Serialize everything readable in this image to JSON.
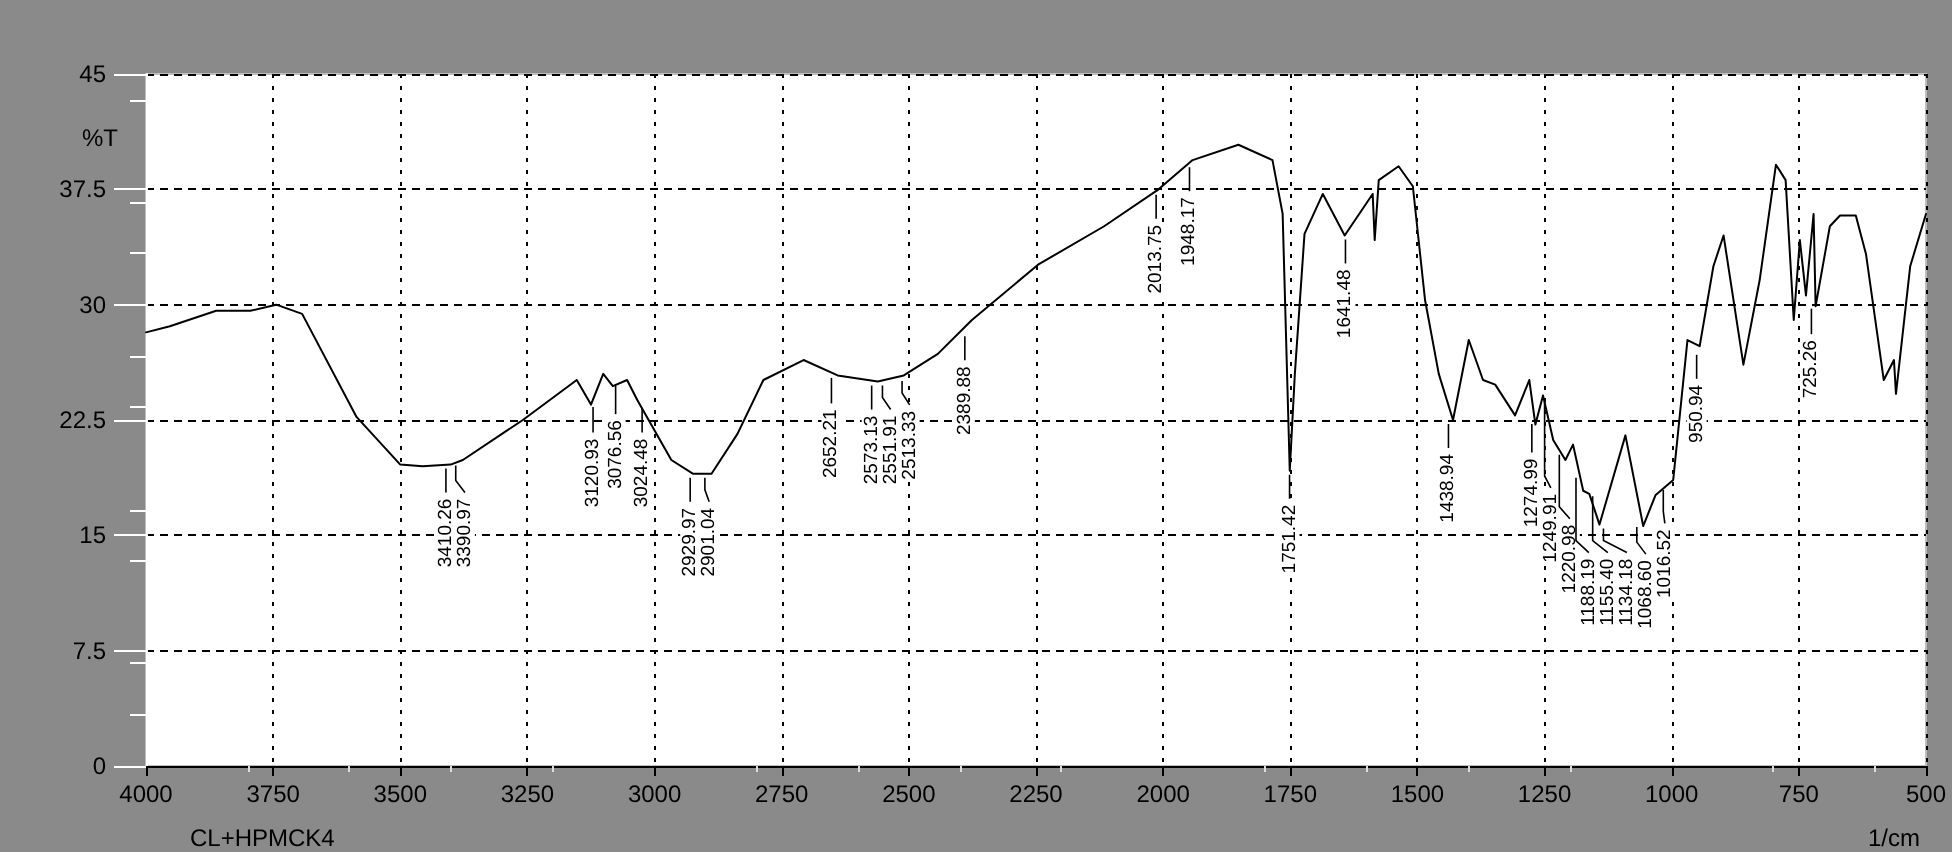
{
  "chart_data": {
    "type": "line",
    "ylabel": "%T",
    "xlabel": "1/cm",
    "x": [
      4000,
      3953,
      3862,
      3795,
      3744,
      3693,
      3586,
      3500,
      3456,
      3401,
      3377,
      3259,
      3153,
      3125,
      3101,
      3082,
      3054,
      3034,
      2967,
      2924,
      2888,
      2837,
      2786,
      2707,
      2640,
      2561,
      2510,
      2443,
      2376,
      2246,
      2116,
      2009,
      1942,
      1852,
      1785,
      1765,
      1751,
      1741,
      1722,
      1686,
      1643,
      1588,
      1584,
      1576,
      1537,
      1509,
      1485,
      1458,
      1430,
      1399,
      1371,
      1347,
      1308,
      1280,
      1268,
      1253,
      1233,
      1209,
      1194,
      1174,
      1162,
      1142,
      1091,
      1056,
      1032,
      997,
      969,
      945,
      918,
      898,
      859,
      827,
      795,
      776,
      760,
      748,
      736,
      721,
      717,
      689,
      669,
      638,
      618,
      583,
      563,
      559,
      531,
      500
    ],
    "series": [
      {
        "color": "#000000",
        "values": [
          28.2,
          28.6,
          29.6,
          29.6,
          30.0,
          29.4,
          22.7,
          19.6,
          19.5,
          19.6,
          19.9,
          22.5,
          25.1,
          23.5,
          25.5,
          24.7,
          25.1,
          23.8,
          19.9,
          19.0,
          19.0,
          21.6,
          25.1,
          26.4,
          25.4,
          25.0,
          25.4,
          26.8,
          29.0,
          32.6,
          35.1,
          37.5,
          39.4,
          40.4,
          39.4,
          35.9,
          19.2,
          25.5,
          34.6,
          37.2,
          34.5,
          37.2,
          34.2,
          38.1,
          39.0,
          37.7,
          30.3,
          25.5,
          22.5,
          27.7,
          25.1,
          24.8,
          22.8,
          25.1,
          22.2,
          24.1,
          21.2,
          19.9,
          20.9,
          17.9,
          17.7,
          15.7,
          21.5,
          15.6,
          17.6,
          18.6,
          27.7,
          27.3,
          32.5,
          34.5,
          26.1,
          31.6,
          39.1,
          38.1,
          29.0,
          34.2,
          30.6,
          35.9,
          29.9,
          35.1,
          35.8,
          35.8,
          33.3,
          25.1,
          26.4,
          24.2,
          32.5,
          35.9
        ]
      }
    ],
    "xlim": [
      4000,
      500
    ],
    "ylim": [
      0,
      45
    ],
    "xticks": [
      4000,
      3750,
      3500,
      3250,
      3000,
      2750,
      2500,
      2250,
      2000,
      1750,
      1500,
      1250,
      1000,
      750,
      500
    ],
    "yticks": [
      0,
      7.5,
      15,
      22.5,
      30,
      37.5,
      45
    ],
    "grid": true,
    "marker": "none",
    "line_style": "solid",
    "annotations": [
      "CL+HPMCK4",
      {
        "text": "3410.26",
        "x": 3410.26,
        "y": 19.6
      },
      {
        "text": "3390.97",
        "x": 3390.97,
        "y": 19.8
      },
      {
        "text": "3120.93",
        "x": 3120.93,
        "y": 23.6
      },
      {
        "text": "3076.56",
        "x": 3076.56,
        "y": 25.0
      },
      {
        "text": "3024.48",
        "x": 3024.48,
        "y": 23.5
      },
      {
        "text": "2929.97",
        "x": 2929.97,
        "y": 19.0
      },
      {
        "text": "2901.04",
        "x": 2901.04,
        "y": 19.0
      },
      {
        "text": "2652.21",
        "x": 2652.21,
        "y": 25.5
      },
      {
        "text": "2573.13",
        "x": 2573.13,
        "y": 25.0
      },
      {
        "text": "2551.91",
        "x": 2551.91,
        "y": 25.0
      },
      {
        "text": "2513.33",
        "x": 2513.33,
        "y": 25.3
      },
      {
        "text": "2389.88",
        "x": 2389.88,
        "y": 28.2
      },
      {
        "text": "2013.75",
        "x": 2013.75,
        "y": 37.4
      },
      {
        "text": "1948.17",
        "x": 1948.17,
        "y": 39.2
      },
      {
        "text": "1751.42",
        "x": 1751.42,
        "y": 19.2
      },
      {
        "text": "1641.48",
        "x": 1641.48,
        "y": 34.5
      },
      {
        "text": "1438.94",
        "x": 1438.94,
        "y": 22.5
      },
      {
        "text": "1274.99",
        "x": 1274.99,
        "y": 22.5
      },
      {
        "text": "1249.91",
        "x": 1249.91,
        "y": 24.0
      },
      {
        "text": "1220.98",
        "x": 1220.98,
        "y": 20.5
      },
      {
        "text": "1188.19",
        "x": 1188.19,
        "y": 19.0
      },
      {
        "text": "1155.40",
        "x": 1155.4,
        "y": 17.8
      },
      {
        "text": "1134.18",
        "x": 1134.18,
        "y": 15.7
      },
      {
        "text": "1068.60",
        "x": 1068.6,
        "y": 15.8
      },
      {
        "text": "1016.52",
        "x": 1016.52,
        "y": 18.2
      },
      {
        "text": "950.94",
        "x": 950.94,
        "y": 27.0
      },
      {
        "text": "725.26",
        "x": 725.26,
        "y": 30.0
      }
    ]
  }
}
